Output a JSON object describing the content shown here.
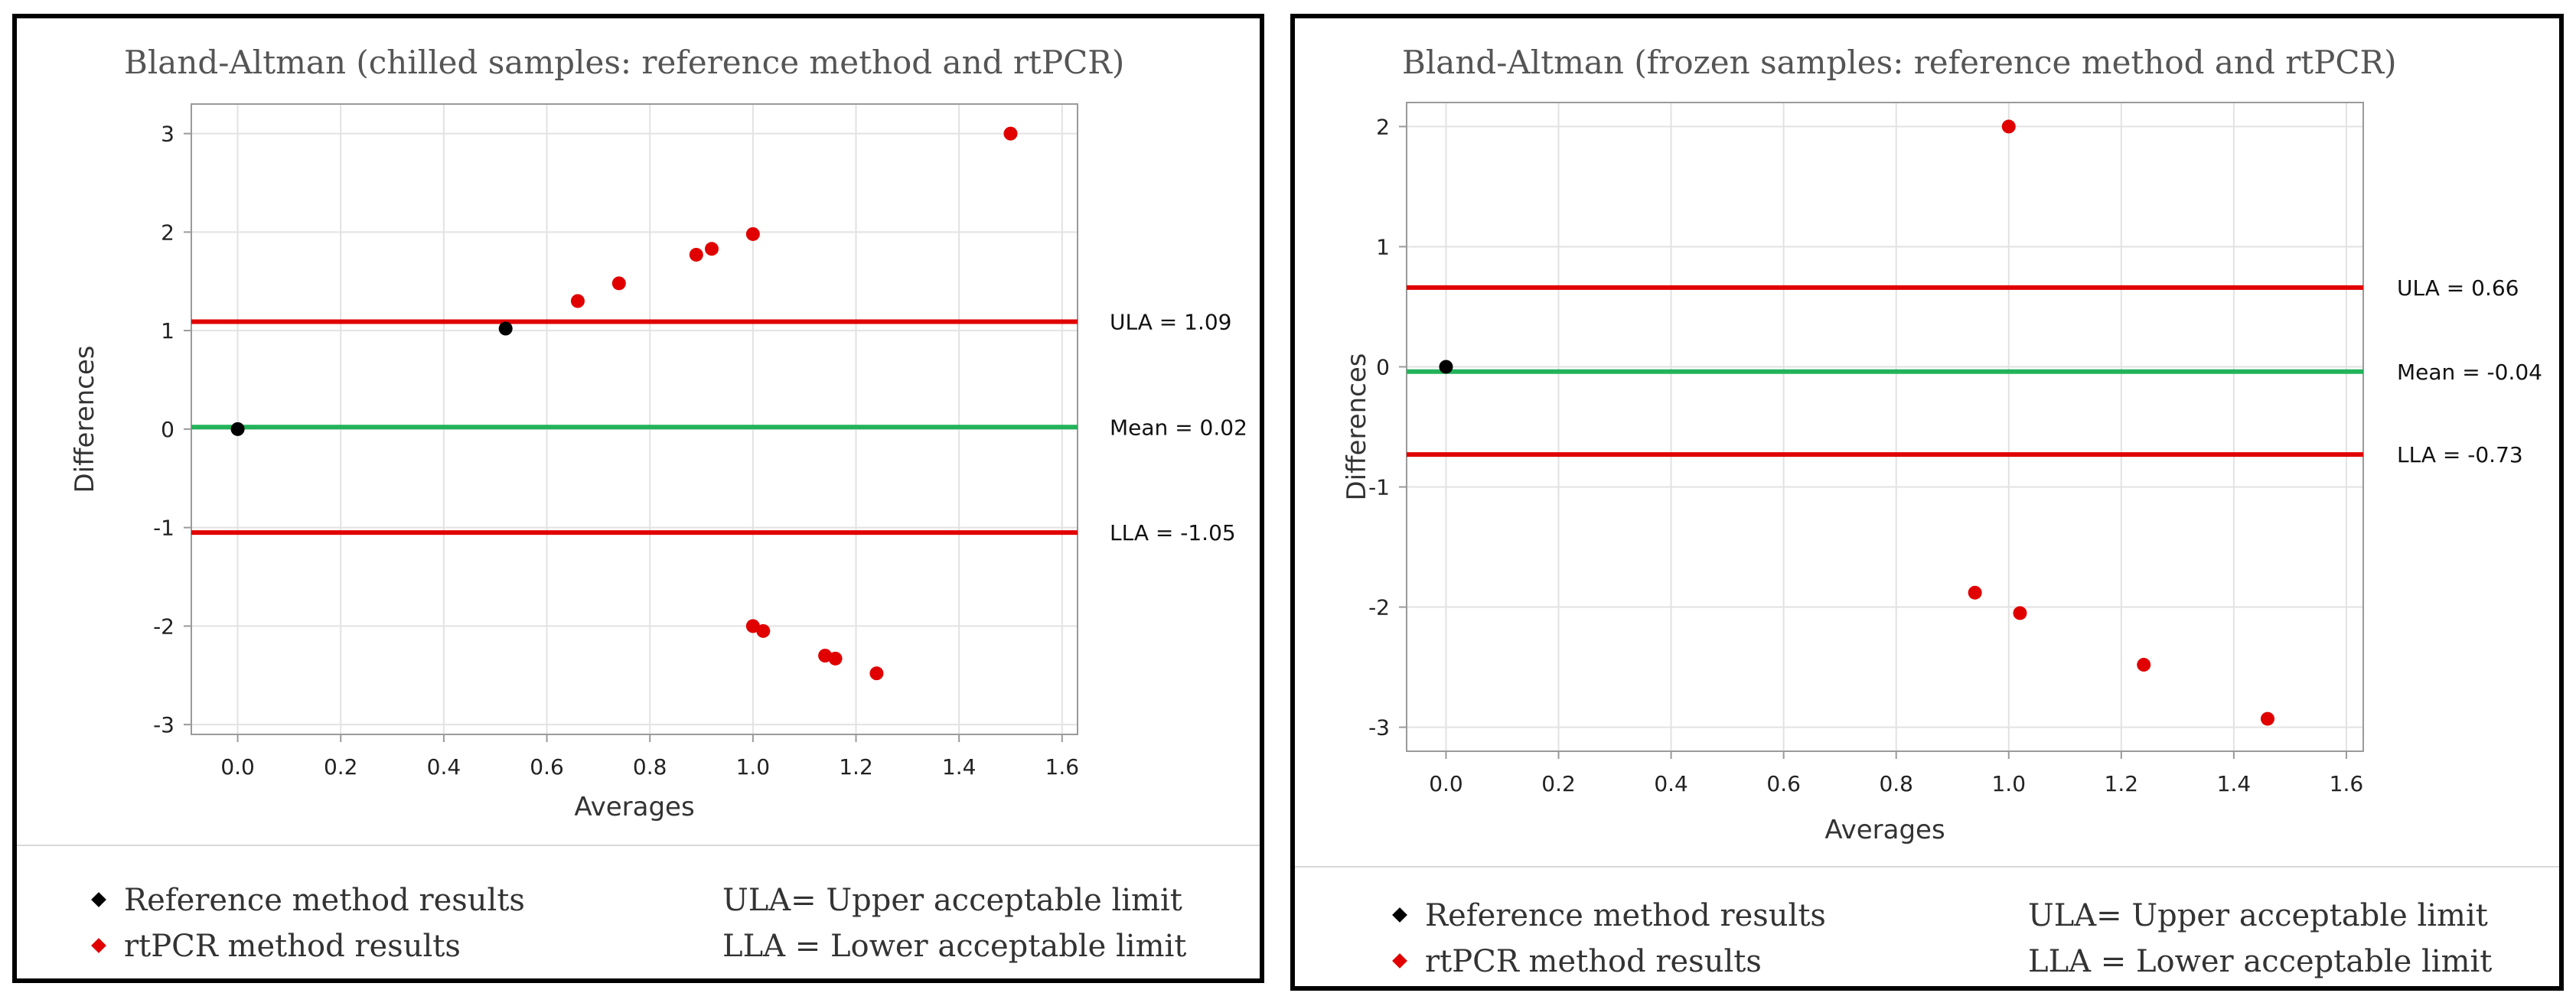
{
  "colors": {
    "reference": "#000000",
    "rtpcr": "#e00000",
    "limit": "#e00000",
    "mean": "#22b35a",
    "grid": "#e2e2e2",
    "axis": "#9a9a9a"
  },
  "legend": {
    "reference": "Reference method results",
    "rtpcr": "rtPCR method results",
    "ula": "ULA= Upper acceptable limit",
    "lla": "LLA = Lower acceptable limit"
  },
  "chart_data": [
    {
      "type": "scatter",
      "title": "Bland-Altman (chilled samples: reference method and rtPCR)",
      "xlabel": "Averages",
      "ylabel": "Differences",
      "xlim": [
        -0.09,
        1.63
      ],
      "ylim": [
        -3.1,
        3.3
      ],
      "xticks": [
        0.0,
        0.2,
        0.4,
        0.6,
        0.8,
        1.0,
        1.2,
        1.4,
        1.6
      ],
      "xtick_labels": [
        "0.0",
        "0.2",
        "0.4",
        "0.6",
        "0.8",
        "1.0",
        "1.2",
        "1.4",
        "1.6"
      ],
      "yticks": [
        -3,
        -2,
        -1,
        0,
        1,
        2,
        3
      ],
      "ytick_labels": [
        "-3",
        "-2",
        "-1",
        "0",
        "1",
        "2",
        "3"
      ],
      "grid": true,
      "series": [
        {
          "name": "Reference method results",
          "points": [
            [
              0.0,
              0.0
            ],
            [
              0.52,
              1.02
            ]
          ]
        },
        {
          "name": "rtPCR method results",
          "points": [
            [
              0.66,
              1.3
            ],
            [
              0.74,
              1.48
            ],
            [
              0.89,
              1.77
            ],
            [
              0.92,
              1.83
            ],
            [
              1.0,
              1.98
            ],
            [
              1.5,
              3.0
            ],
            [
              1.0,
              -2.0
            ],
            [
              1.02,
              -2.05
            ],
            [
              1.14,
              -2.3
            ],
            [
              1.16,
              -2.33
            ],
            [
              1.24,
              -2.48
            ]
          ]
        }
      ],
      "reference_lines": [
        {
          "name": "ULA",
          "value": 1.09,
          "label": "ULA = 1.09"
        },
        {
          "name": "Mean",
          "value": 0.02,
          "label": "Mean = 0.02"
        },
        {
          "name": "LLA",
          "value": -1.05,
          "label": "LLA = -1.05"
        }
      ]
    },
    {
      "type": "scatter",
      "title": "Bland-Altman (frozen samples: reference method and rtPCR)",
      "xlabel": "Averages",
      "ylabel": "Differences",
      "xlim": [
        -0.07,
        1.63
      ],
      "ylim": [
        -3.2,
        2.2
      ],
      "xticks": [
        0.0,
        0.2,
        0.4,
        0.6,
        0.8,
        1.0,
        1.2,
        1.4,
        1.6
      ],
      "xtick_labels": [
        "0.0",
        "0.2",
        "0.4",
        "0.6",
        "0.8",
        "1.0",
        "1.2",
        "1.4",
        "1.6"
      ],
      "yticks": [
        -3,
        -2,
        -1,
        0,
        1,
        2
      ],
      "ytick_labels": [
        "-3",
        "-2",
        "-1",
        "0",
        "1",
        "2"
      ],
      "grid": true,
      "series": [
        {
          "name": "Reference method results",
          "points": [
            [
              0.0,
              0.0
            ]
          ]
        },
        {
          "name": "rtPCR method results",
          "points": [
            [
              1.0,
              2.0
            ],
            [
              0.94,
              -1.88
            ],
            [
              1.02,
              -2.05
            ],
            [
              1.24,
              -2.48
            ],
            [
              1.46,
              -2.93
            ]
          ]
        }
      ],
      "reference_lines": [
        {
          "name": "ULA",
          "value": 0.66,
          "label": "ULA = 0.66"
        },
        {
          "name": "Mean",
          "value": -0.04,
          "label": "Mean = -0.04"
        },
        {
          "name": "LLA",
          "value": -0.73,
          "label": "LLA = -0.73"
        }
      ]
    }
  ]
}
